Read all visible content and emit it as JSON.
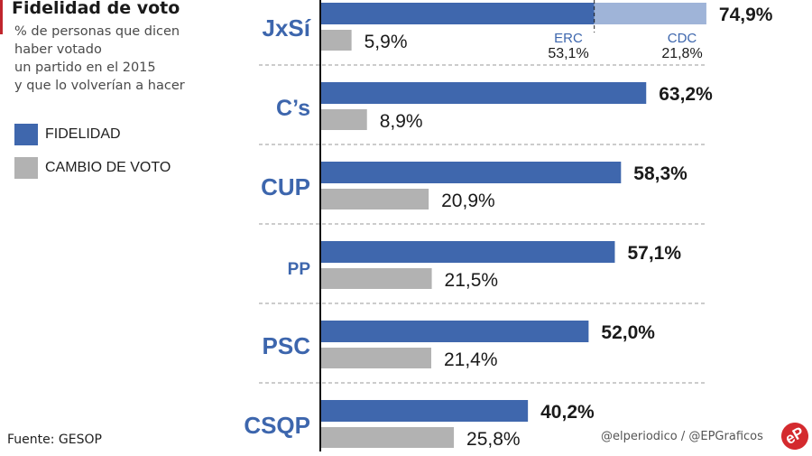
{
  "header": {
    "title": "Fidelidad de voto",
    "subtitle_lines": [
      "% de personas que dicen",
      "haber votado",
      "un partido en el 2015",
      "y que lo volverían a hacer"
    ]
  },
  "legend": [
    {
      "label": "FIDELIDAD",
      "color": "#3f67ad"
    },
    {
      "label": "CAMBIO DE VOTO",
      "color": "#b2b2b2"
    }
  ],
  "footer": {
    "source": "Fuente: GESOP",
    "credit": "@elperiodico / @EPGraficos",
    "logo_text": "eP"
  },
  "chart_data": {
    "type": "bar",
    "orientation": "horizontal",
    "title": "Fidelidad de voto",
    "xlabel": "",
    "ylabel": "",
    "xlim": [
      0,
      75
    ],
    "grid": false,
    "legend_position": "left",
    "categories": [
      "JxSí",
      "C’s",
      "CUP",
      "PP",
      "PSC",
      "CSQP"
    ],
    "series": [
      {
        "name": "FIDELIDAD",
        "color": "#3f67ad",
        "values": [
          74.9,
          63.2,
          58.3,
          57.1,
          52.0,
          40.2
        ],
        "labels": [
          "74,9%",
          "63,2%",
          "58,3%",
          "57,1%",
          "52,0%",
          "40,2%"
        ]
      },
      {
        "name": "CAMBIO DE VOTO",
        "color": "#b2b2b2",
        "values": [
          5.9,
          8.9,
          20.9,
          21.5,
          21.4,
          25.8
        ],
        "labels": [
          "5,9%",
          "8,9%",
          "20,9%",
          "21,5%",
          "21,4%",
          "25,8%"
        ]
      }
    ],
    "breakdown": {
      "category": "JxSí",
      "light_color": "#9fb4d8",
      "parts": [
        {
          "name": "ERC",
          "value": 53.1,
          "label": "53,1%"
        },
        {
          "name": "CDC",
          "value": 21.8,
          "label": "21,8%"
        }
      ]
    }
  }
}
